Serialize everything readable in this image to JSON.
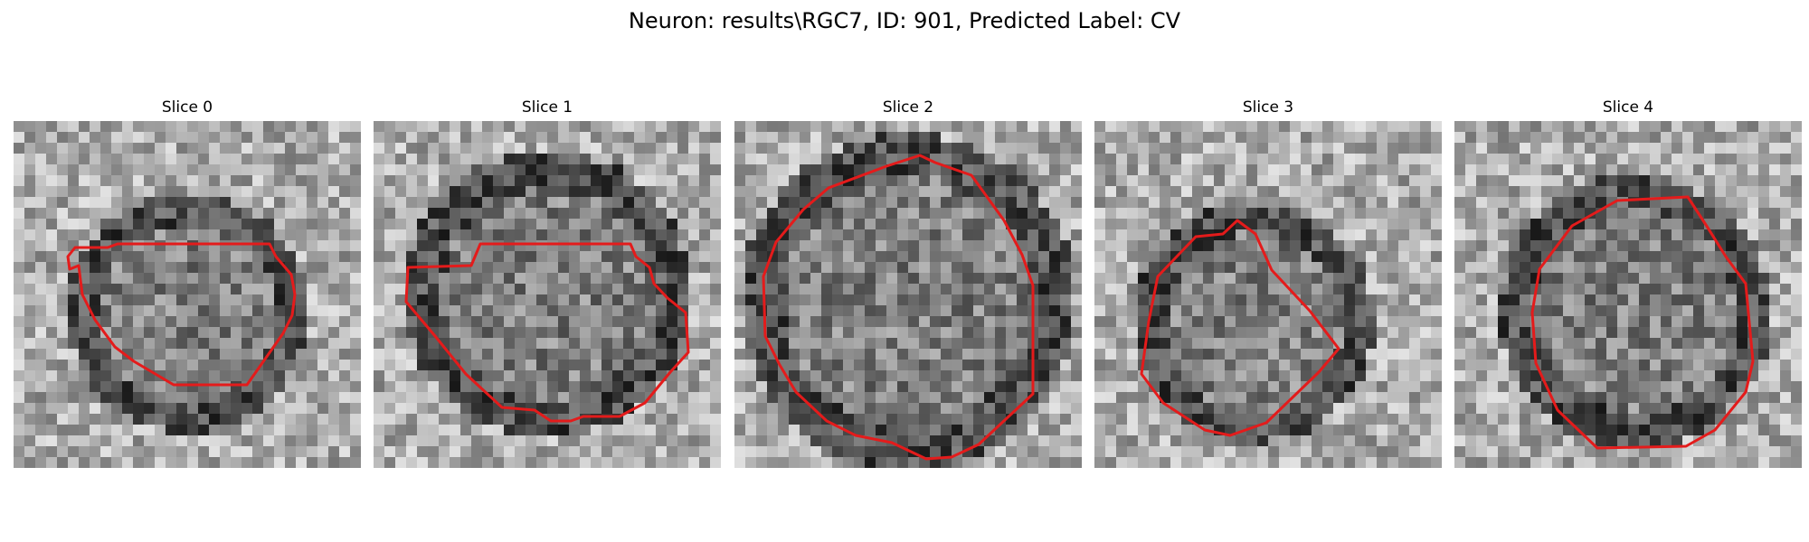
{
  "figure": {
    "title": "Neuron: results\\RGC7, ID: 901, Predicted Label: CV",
    "contour_color": "#e41b1b",
    "colormap": "gray"
  },
  "panels": [
    {
      "title": "Slice 0"
    },
    {
      "title": "Slice 1"
    },
    {
      "title": "Slice 2"
    },
    {
      "title": "Slice 3"
    },
    {
      "title": "Slice 4"
    }
  ]
}
